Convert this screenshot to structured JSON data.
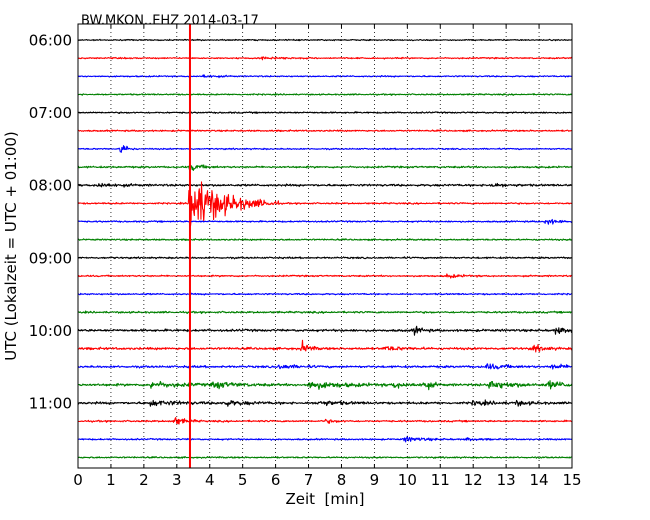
{
  "chart_data": {
    "type": "line",
    "title": "BW.MKON..EHZ 2014-03-17",
    "xlabel": "Zeit  [min]",
    "ylabel": "UTC (Lokalzeit = UTC + 01:00)",
    "xlim": [
      0,
      15
    ],
    "x_ticks": [
      "0",
      "1",
      "2",
      "3",
      "4",
      "5",
      "6",
      "7",
      "8",
      "9",
      "10",
      "11",
      "12",
      "13",
      "14",
      "15"
    ],
    "y_tick_labels": [
      "06:00",
      "07:00",
      "08:00",
      "09:00",
      "10:00",
      "11:00"
    ],
    "grid": "vertical dotted",
    "trace_interval_min": 15,
    "colors": [
      "#000000",
      "#ff0000",
      "#0000ff",
      "#008000"
    ],
    "traces": [
      {
        "start": "06:00",
        "color": "#000000",
        "noise": 0.4,
        "events": []
      },
      {
        "start": "06:15",
        "color": "#ff0000",
        "noise": 0.45,
        "events": [
          {
            "x": 5.6,
            "amp": 1.0,
            "dur": 0.5
          }
        ]
      },
      {
        "start": "06:30",
        "color": "#0000ff",
        "noise": 0.45,
        "events": [
          {
            "x": 3.8,
            "amp": 1.2,
            "dur": 0.3
          }
        ]
      },
      {
        "start": "06:45",
        "color": "#008000",
        "noise": 0.45,
        "events": []
      },
      {
        "start": "07:00",
        "color": "#000000",
        "noise": 0.5,
        "events": []
      },
      {
        "start": "07:15",
        "color": "#ff0000",
        "noise": 0.5,
        "events": []
      },
      {
        "start": "07:30",
        "color": "#0000ff",
        "noise": 0.45,
        "events": [
          {
            "x": 1.3,
            "amp": 5.0,
            "dur": 0.15
          }
        ]
      },
      {
        "start": "07:45",
        "color": "#008000",
        "noise": 0.6,
        "events": [
          {
            "x": 3.4,
            "amp": 2.5,
            "dur": 0.3
          }
        ]
      },
      {
        "start": "08:00",
        "color": "#000000",
        "noise": 0.7,
        "events": [
          {
            "x": 0.6,
            "amp": 1.5,
            "dur": 0.5
          },
          {
            "x": 12.5,
            "amp": 1.4,
            "dur": 0.4
          }
        ]
      },
      {
        "start": "08:15",
        "color": "#ff0000",
        "noise": 0.5,
        "events": [
          {
            "x": 3.4,
            "amp": 22.0,
            "dur": 0.9
          }
        ]
      },
      {
        "start": "08:30",
        "color": "#0000ff",
        "noise": 0.5,
        "events": [
          {
            "x": 14.2,
            "amp": 2.2,
            "dur": 0.3
          }
        ]
      },
      {
        "start": "08:45",
        "color": "#008000",
        "noise": 0.5,
        "events": []
      },
      {
        "start": "09:00",
        "color": "#000000",
        "noise": 0.55,
        "events": []
      },
      {
        "start": "09:15",
        "color": "#ff0000",
        "noise": 0.5,
        "events": [
          {
            "x": 11.2,
            "amp": 1.2,
            "dur": 0.4
          }
        ]
      },
      {
        "start": "09:30",
        "color": "#0000ff",
        "noise": 0.5,
        "events": []
      },
      {
        "start": "09:45",
        "color": "#008000",
        "noise": 0.6,
        "events": []
      },
      {
        "start": "10:00",
        "color": "#000000",
        "noise": 0.75,
        "events": [
          {
            "x": 10.2,
            "amp": 3.0,
            "dur": 0.2
          },
          {
            "x": 14.5,
            "amp": 2.0,
            "dur": 0.5
          }
        ]
      },
      {
        "start": "10:15",
        "color": "#ff0000",
        "noise": 0.75,
        "events": [
          {
            "x": 6.8,
            "amp": 4.0,
            "dur": 0.2
          },
          {
            "x": 9.3,
            "amp": 1.4,
            "dur": 0.5
          },
          {
            "x": 13.8,
            "amp": 2.4,
            "dur": 0.3
          }
        ]
      },
      {
        "start": "10:30",
        "color": "#0000ff",
        "noise": 0.7,
        "events": [
          {
            "x": 6.1,
            "amp": 1.5,
            "dur": 0.5
          },
          {
            "x": 12.4,
            "amp": 1.8,
            "dur": 0.5
          },
          {
            "x": 14.4,
            "amp": 1.6,
            "dur": 0.4
          }
        ]
      },
      {
        "start": "10:45",
        "color": "#008000",
        "noise": 0.8,
        "events": [
          {
            "x": 2.2,
            "amp": 2.2,
            "dur": 0.7
          },
          {
            "x": 4.1,
            "amp": 2.3,
            "dur": 0.6
          },
          {
            "x": 7.0,
            "amp": 2.6,
            "dur": 0.9
          },
          {
            "x": 9.6,
            "amp": 1.8,
            "dur": 0.5
          },
          {
            "x": 10.5,
            "amp": 3.0,
            "dur": 0.2
          },
          {
            "x": 12.5,
            "amp": 3.2,
            "dur": 0.6
          },
          {
            "x": 14.3,
            "amp": 2.4,
            "dur": 0.5
          }
        ]
      },
      {
        "start": "11:00",
        "color": "#000000",
        "noise": 0.75,
        "events": [
          {
            "x": 2.2,
            "amp": 2.0,
            "dur": 0.7
          },
          {
            "x": 4.4,
            "amp": 1.8,
            "dur": 0.6
          },
          {
            "x": 7.3,
            "amp": 1.6,
            "dur": 0.6
          },
          {
            "x": 12.0,
            "amp": 1.5,
            "dur": 0.5
          },
          {
            "x": 13.3,
            "amp": 1.4,
            "dur": 0.4
          }
        ]
      },
      {
        "start": "11:15",
        "color": "#ff0000",
        "noise": 0.55,
        "events": [
          {
            "x": 2.9,
            "amp": 3.2,
            "dur": 0.3
          },
          {
            "x": 7.5,
            "amp": 1.2,
            "dur": 0.3
          }
        ]
      },
      {
        "start": "11:30",
        "color": "#0000ff",
        "noise": 0.5,
        "events": [
          {
            "x": 9.9,
            "amp": 1.8,
            "dur": 0.5
          },
          {
            "x": 11.8,
            "amp": 1.0,
            "dur": 0.3
          }
        ]
      },
      {
        "start": "11:45",
        "color": "#008000",
        "noise": 0.5,
        "events": []
      }
    ],
    "marker_line": {
      "x": 3.4,
      "color": "#ff0000"
    }
  }
}
